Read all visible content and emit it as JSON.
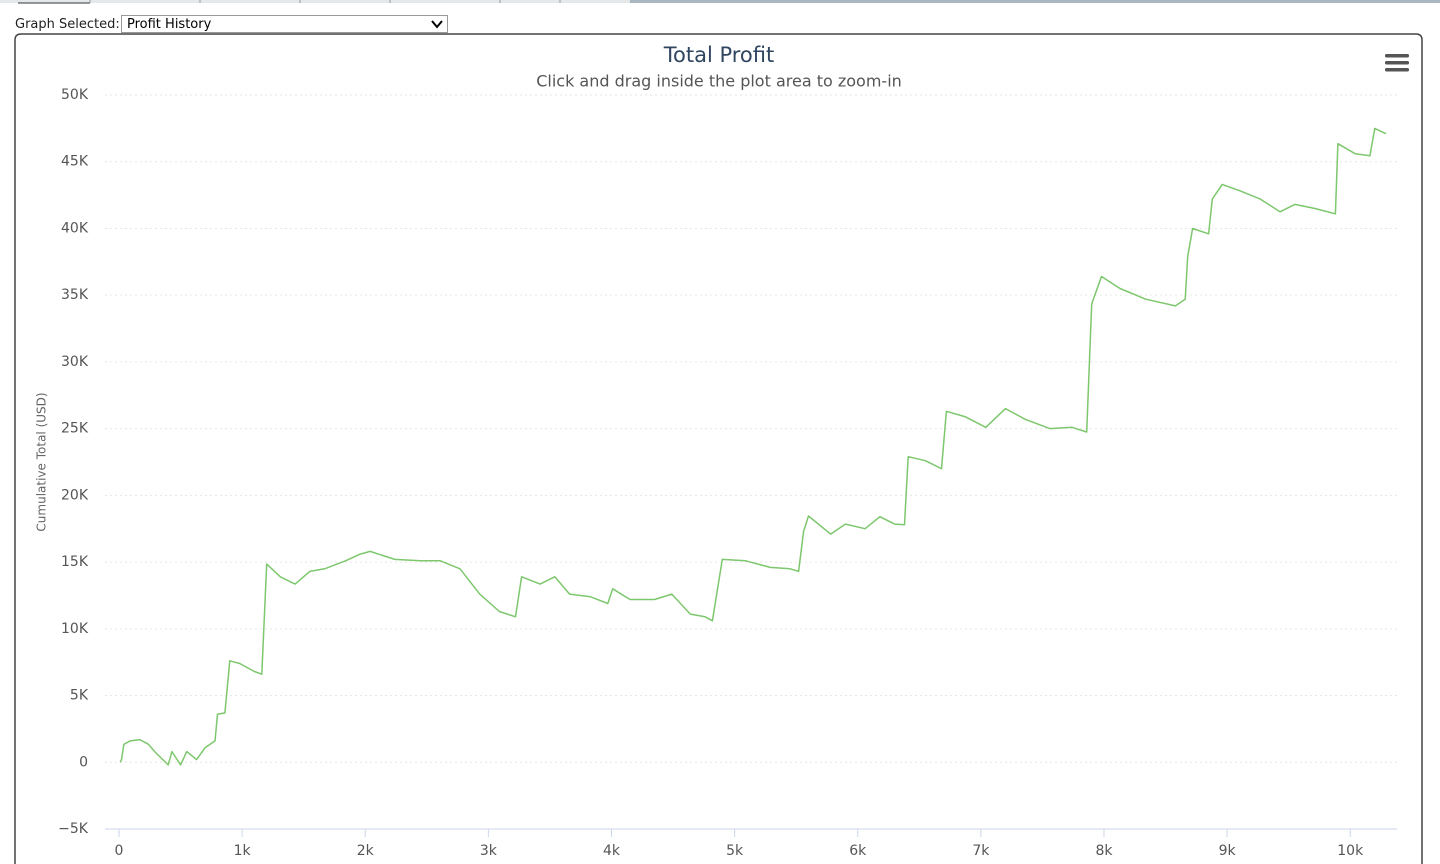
{
  "graph_selector": {
    "label": "Graph Selected:",
    "value": "Profit History"
  },
  "chart_data": {
    "type": "line",
    "title": "Total Profit",
    "subtitle": "Click and drag inside the plot area to zoom-in",
    "y_label": "Cumulative Total (USD)",
    "color": "#7dc76d",
    "grid": true,
    "x": [
      10,
      20,
      40,
      90,
      170,
      240,
      290,
      400,
      430,
      500,
      550,
      630,
      700,
      780,
      800,
      860,
      900,
      980,
      1100,
      1160,
      1200,
      1310,
      1430,
      1550,
      1670,
      1840,
      1960,
      2040,
      2240,
      2450,
      2610,
      2770,
      2930,
      3090,
      3220,
      3270,
      3420,
      3540,
      3660,
      3830,
      3970,
      4010,
      4150,
      4350,
      4490,
      4640,
      4760,
      4820,
      4900,
      5090,
      5290,
      5450,
      5520,
      5560,
      5600,
      5780,
      5900,
      6060,
      6180,
      6300,
      6380,
      6410,
      6550,
      6680,
      6720,
      6870,
      7040,
      7200,
      7360,
      7560,
      7740,
      7860,
      7900,
      7980,
      8130,
      8340,
      8580,
      8660,
      8680,
      8720,
      8850,
      8880,
      8960,
      9110,
      9270,
      9430,
      9550,
      9710,
      9880,
      9900,
      10040,
      10160,
      10200,
      10290
    ],
    "values": [
      0,
      200,
      1350,
      1600,
      1700,
      1350,
      800,
      -200,
      800,
      -200,
      800,
      200,
      1100,
      1600,
      3600,
      3700,
      7600,
      7400,
      6800,
      6600,
      14850,
      13900,
      13350,
      14300,
      14500,
      15100,
      15600,
      15800,
      15200,
      15100,
      15100,
      14500,
      12600,
      11300,
      10900,
      13900,
      13350,
      13900,
      12600,
      12400,
      11900,
      13000,
      12200,
      12200,
      12600,
      11100,
      10900,
      10600,
      15200,
      15100,
      14600,
      14500,
      14300,
      17300,
      18450,
      17100,
      17850,
      17500,
      18400,
      17850,
      17800,
      22900,
      22600,
      22000,
      26300,
      25900,
      25100,
      26500,
      25700,
      25000,
      25100,
      24750,
      34350,
      36400,
      35500,
      34700,
      34200,
      34700,
      37900,
      40000,
      39600,
      42200,
      43300,
      42800,
      42200,
      41250,
      41800,
      41500,
      41100,
      46350,
      45600,
      45450,
      47500,
      47100
    ],
    "xlim": [
      0,
      10380
    ],
    "xticks": [
      0,
      {
        "value": 1000,
        "label": "1k"
      },
      {
        "value": 2000,
        "label": "2k"
      },
      {
        "value": 3000,
        "label": "3k"
      },
      {
        "value": 4000,
        "label": "4k"
      },
      {
        "value": 5000,
        "label": "5k"
      },
      {
        "value": 6000,
        "label": "6k"
      },
      {
        "value": 7000,
        "label": "7k"
      },
      {
        "value": 8000,
        "label": "8k"
      },
      {
        "value": 9000,
        "label": "9k"
      },
      {
        "value": 10000,
        "label": "10k"
      }
    ],
    "ylim": [
      -5000,
      50000
    ],
    "yticks": [
      {
        "value": -5000,
        "label": "−5K"
      },
      0,
      {
        "value": 5000,
        "label": "5K"
      },
      {
        "value": 10000,
        "label": "10K"
      },
      {
        "value": 15000,
        "label": "15K"
      },
      {
        "value": 20000,
        "label": "20K"
      },
      {
        "value": 25000,
        "label": "25K"
      },
      {
        "value": 30000,
        "label": "30K"
      },
      {
        "value": 35000,
        "label": "35K"
      },
      {
        "value": 40000,
        "label": "40K"
      },
      {
        "value": 45000,
        "label": "45K"
      },
      {
        "value": 50000,
        "label": "50K"
      }
    ]
  }
}
